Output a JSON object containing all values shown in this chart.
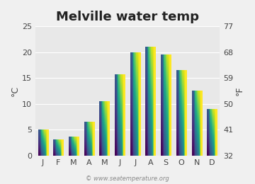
{
  "title": "Melville water temp",
  "months": [
    "J",
    "F",
    "M",
    "A",
    "M",
    "J",
    "J",
    "A",
    "S",
    "O",
    "N",
    "D"
  ],
  "values": [
    5.0,
    3.1,
    3.6,
    6.5,
    10.5,
    15.7,
    19.9,
    21.0,
    19.5,
    16.5,
    12.5,
    9.0
  ],
  "ylabel_left": "°C",
  "ylabel_right": "°F",
  "yticks_c": [
    0,
    5,
    10,
    15,
    20,
    25
  ],
  "yticks_f": [
    32,
    41,
    50,
    59,
    68,
    77
  ],
  "ylim": [
    0,
    25
  ],
  "background_color": "#f0f0f0",
  "plot_bg_color": "#e8e8e8",
  "watermark": "© www.seatemperature.org",
  "bar_color_top": "#5bc8f0",
  "bar_color_bottom": "#1a5276",
  "title_fontsize": 13,
  "tick_fontsize": 8,
  "label_fontsize": 9
}
